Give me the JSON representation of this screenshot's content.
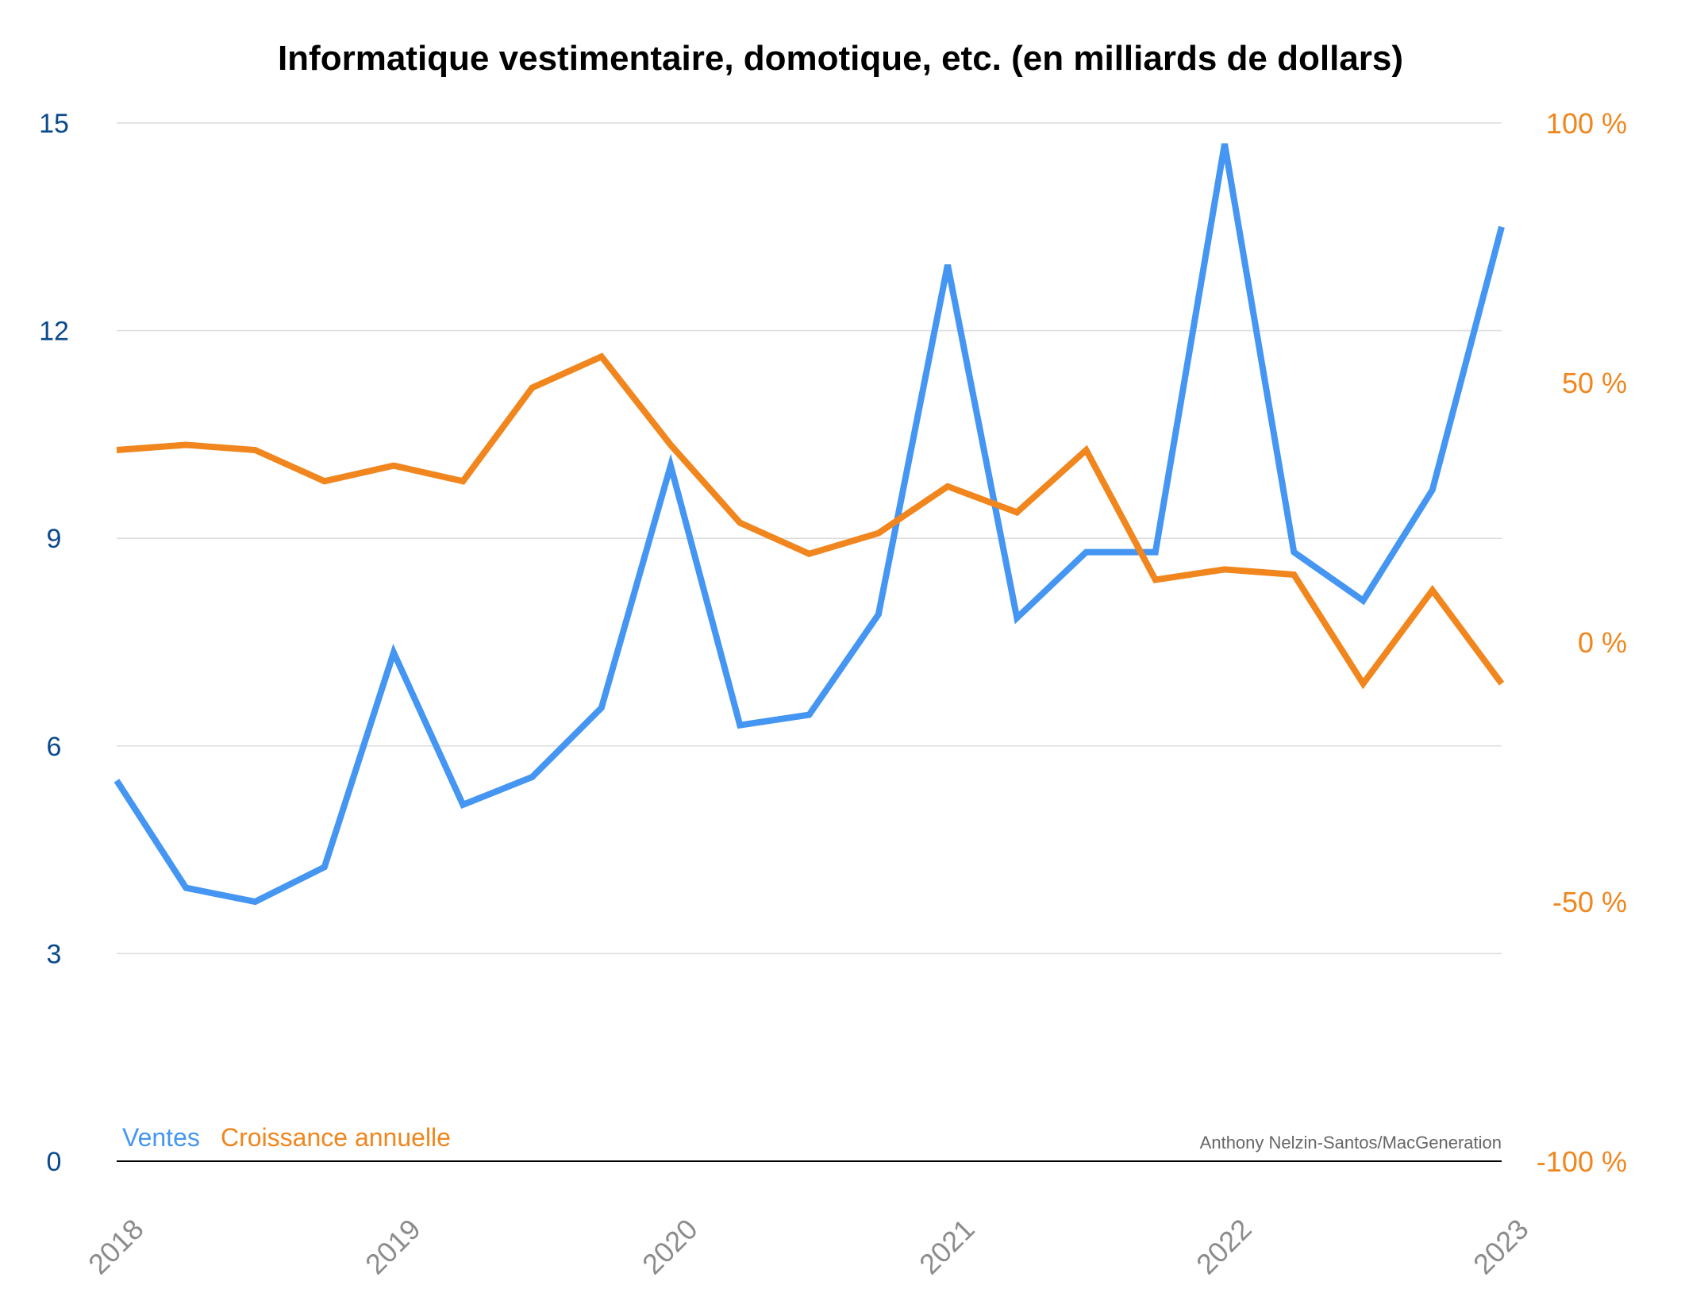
{
  "chart_data": {
    "type": "line",
    "title": "Informatique vestimentaire, domotique, etc. (en milliards de dollars)",
    "credit": "Anthony Nelzin-Santos/MacGeneration",
    "x_tick_labels": [
      "2018",
      "2019",
      "2020",
      "2021",
      "2022",
      "2023"
    ],
    "x_range": [
      2018,
      2023
    ],
    "y_left": {
      "range": [
        0,
        15
      ],
      "ticks": [
        0,
        3,
        6,
        9,
        12,
        15
      ],
      "tick_labels": [
        "0",
        "3",
        "6",
        "9",
        "12",
        "15"
      ],
      "color": "#0b4a8c"
    },
    "y_right": {
      "range": [
        -100,
        100
      ],
      "ticks": [
        -100,
        -50,
        0,
        50,
        100
      ],
      "tick_labels": [
        "-100 %",
        "-50 %",
        "0 %",
        "50 %",
        "100 %"
      ],
      "color": "#f0861d"
    },
    "grid": true,
    "legend_position": "bottom-left",
    "x": [
      2018.0,
      2018.25,
      2018.5,
      2018.75,
      2019.0,
      2019.25,
      2019.5,
      2019.75,
      2020.0,
      2020.25,
      2020.5,
      2020.75,
      2021.0,
      2021.25,
      2021.5,
      2021.75,
      2022.0,
      2022.25,
      2022.5,
      2022.75,
      2023.0
    ],
    "series": [
      {
        "name": "Ventes",
        "axis": "left",
        "color": "#4596f2",
        "values": [
          5.5,
          3.95,
          3.75,
          4.25,
          7.35,
          5.15,
          5.55,
          6.55,
          10.05,
          6.3,
          6.45,
          7.9,
          12.95,
          7.85,
          8.8,
          8.8,
          14.7,
          8.8,
          8.1,
          9.7,
          13.5
        ]
      },
      {
        "name": "Croissance annuelle",
        "axis": "right",
        "color": "#f0861d",
        "values": [
          37,
          38,
          37,
          31,
          34,
          31,
          49,
          55,
          38,
          23,
          17,
          21,
          30,
          25,
          37,
          12,
          14,
          13,
          -8,
          10,
          -8
        ]
      }
    ]
  }
}
